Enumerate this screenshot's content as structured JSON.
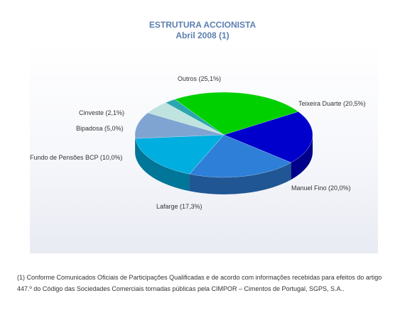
{
  "header": {
    "title": "ESTRUTURA ACCIONISTA",
    "subtitle": "Abril 2008 (1)"
  },
  "chart_data": {
    "type": "pie",
    "title": "ESTRUTURA ACCIONISTA",
    "subtitle": "Abril 2008 (1)",
    "slices": [
      {
        "name": "Teixeira Duarte",
        "value": 20.5,
        "label": "Teixeira Duarte (20,5%)",
        "color": "#0000cc"
      },
      {
        "name": "Manuel Fino",
        "value": 20.0,
        "label": "Manuel Fino (20,0%)",
        "color": "#2d7fd8"
      },
      {
        "name": "Lafarge",
        "value": 17.3,
        "label": "Lafarge (17,3%)",
        "color": "#00aee0"
      },
      {
        "name": "Fundo de Pensões BCP",
        "value": 10.0,
        "label": "Fundo de Pensões BCP (10,0%)",
        "color": "#7fa4d2"
      },
      {
        "name": "Bipadosa",
        "value": 5.0,
        "label": "Bipadosa (5,0%)",
        "color": "#bfe3df"
      },
      {
        "name": "Cinveste",
        "value": 2.1,
        "label": "Cinveste (2,1%)",
        "color": "#2aa6b0"
      },
      {
        "name": "Outros",
        "value": 25.1,
        "label": "Outros (25,1%)",
        "color": "#00d000"
      }
    ]
  },
  "footnote": "(1) Conforme Comunicados Oficiais de Participações Qualificadas e de acordo com informações recebidas para efeitos do artigo 447.º do Código das Sociedades Comerciais tornadas públicas pela CIMPOR – Cimentos de Portugal, SGPS, S.A.."
}
